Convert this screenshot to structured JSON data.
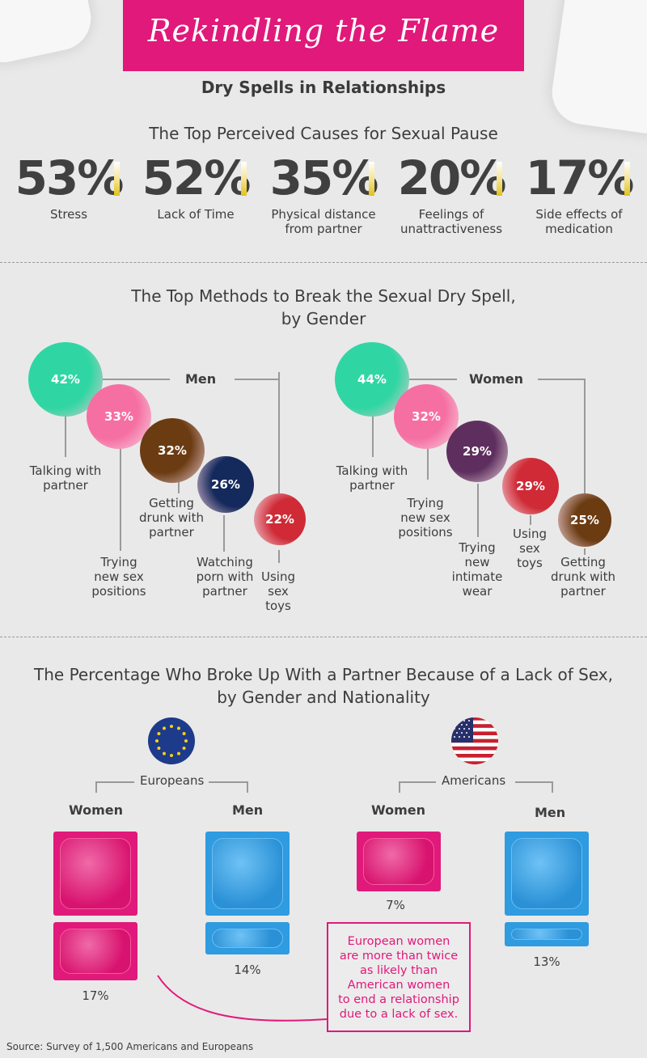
{
  "header": {
    "title": "Rekindling the Flame",
    "subtitle": "Dry Spells in Relationships"
  },
  "causes": {
    "heading": "The Top Perceived Causes for Sexual Pause",
    "items": [
      {
        "value": "53%",
        "label_lines": [
          "Stress"
        ]
      },
      {
        "value": "52%",
        "label_lines": [
          "Lack of Time"
        ]
      },
      {
        "value": "35%",
        "label_lines": [
          "Physical distance",
          "from partner"
        ]
      },
      {
        "value": "20%",
        "label_lines": [
          "Feelings of",
          "unattractiveness"
        ]
      },
      {
        "value": "17%",
        "label_lines": [
          "Side effects of",
          "medication"
        ]
      }
    ]
  },
  "methods": {
    "heading_line1": "The Top Methods to Break the Sexual Dry Spell,",
    "heading_line2": "by Gender",
    "men": {
      "label": "Men",
      "items": [
        {
          "value": "42%",
          "label_lines": [
            "Talking with",
            "partner"
          ],
          "color": "#2fd6a3"
        },
        {
          "value": "33%",
          "label_lines": [
            "Trying",
            "new sex",
            "positions"
          ],
          "color": "#f56fa2"
        },
        {
          "value": "32%",
          "label_lines": [
            "Getting",
            "drunk with",
            "partner"
          ],
          "color": "#6b3b12"
        },
        {
          "value": "26%",
          "label_lines": [
            "Watching",
            "porn with",
            "partner"
          ],
          "color": "#14295c"
        },
        {
          "value": "22%",
          "label_lines": [
            "Using",
            "sex",
            "toys"
          ],
          "color": "#cf2a36"
        }
      ]
    },
    "women": {
      "label": "Women",
      "items": [
        {
          "value": "44%",
          "label_lines": [
            "Talking with",
            "partner"
          ],
          "color": "#2fd6a3"
        },
        {
          "value": "32%",
          "label_lines": [
            "Trying",
            "new sex",
            "positions"
          ],
          "color": "#f56fa2"
        },
        {
          "value": "29%",
          "label_lines": [
            "Trying",
            "new",
            "intimate",
            "wear"
          ],
          "color": "#5e2f5e"
        },
        {
          "value": "29%",
          "label_lines": [
            "Using",
            "sex",
            "toys"
          ],
          "color": "#cf2a36"
        },
        {
          "value": "25%",
          "label_lines": [
            "Getting",
            "drunk with",
            "partner"
          ],
          "color": "#6b3b12"
        }
      ]
    }
  },
  "breakup": {
    "heading_line1": "The Percentage Who Broke Up With a Partner Because of a Lack of Sex,",
    "heading_line2": "by Gender and Nationality",
    "europeans": {
      "label": "Europeans",
      "women_label": "Women",
      "men_label": "Men",
      "women_value": "17%",
      "men_value": "14%"
    },
    "americans": {
      "label": "Americans",
      "women_label": "Women",
      "men_label": "Men",
      "women_value": "7%",
      "men_value": "13%"
    },
    "note_lines": [
      "European women",
      "are more than twice",
      "as likely than",
      "American women",
      "to end a relationship",
      "due to a lack of sex."
    ]
  },
  "chart_data": {
    "type": "bar",
    "title": "The Percentage Who Broke Up With a Partner Because of a Lack of Sex, by Gender and Nationality",
    "categories": [
      "Europeans",
      "Americans"
    ],
    "series": [
      {
        "name": "Women",
        "values": [
          17,
          7
        ]
      },
      {
        "name": "Men",
        "values": [
          14,
          13
        ]
      }
    ],
    "ylabel": "%"
  },
  "colors": {
    "accent": "#e0197a",
    "blue": "#2f9be0",
    "text": "#3d3d3d"
  },
  "source": "Source: Survey of 1,500 Americans and Europeans"
}
